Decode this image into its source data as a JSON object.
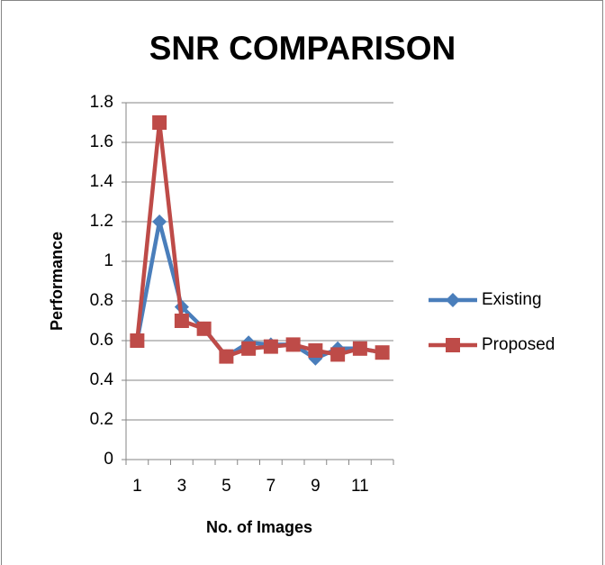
{
  "chart_data": {
    "type": "line",
    "title": "SNR COMPARISON",
    "x_label": "No. of Images",
    "y_label": "Performance",
    "categories": [
      1,
      null,
      3,
      null,
      5,
      null,
      7,
      null,
      9,
      null,
      11,
      null
    ],
    "series": [
      {
        "name": "Existing",
        "color": "#4a7ebb",
        "marker": "diamond",
        "values": [
          0.6,
          1.2,
          0.77,
          0.66,
          0.52,
          0.59,
          0.58,
          0.58,
          0.51,
          0.56,
          0.56,
          0.54
        ]
      },
      {
        "name": "Proposed",
        "color": "#be4b48",
        "marker": "square",
        "values": [
          0.6,
          1.7,
          0.7,
          0.66,
          0.52,
          0.56,
          0.57,
          0.58,
          0.55,
          0.53,
          0.56,
          0.54
        ]
      }
    ],
    "ylim": [
      0,
      1.8
    ],
    "yticks": [
      0,
      {
        "value": 0.2,
        "label": "0.2"
      },
      {
        "value": 0.4,
        "label": "0.4"
      },
      {
        "value": 0.6,
        "label": "0.6"
      },
      {
        "value": 0.8,
        "label": "0.8"
      },
      1,
      {
        "value": 1.2,
        "label": "1.2"
      },
      {
        "value": 1.4,
        "label": "1.4"
      },
      {
        "value": 1.6,
        "label": "1.6"
      },
      {
        "value": 1.8,
        "label": "1.8"
      }
    ],
    "grid": true,
    "legend": "right"
  }
}
